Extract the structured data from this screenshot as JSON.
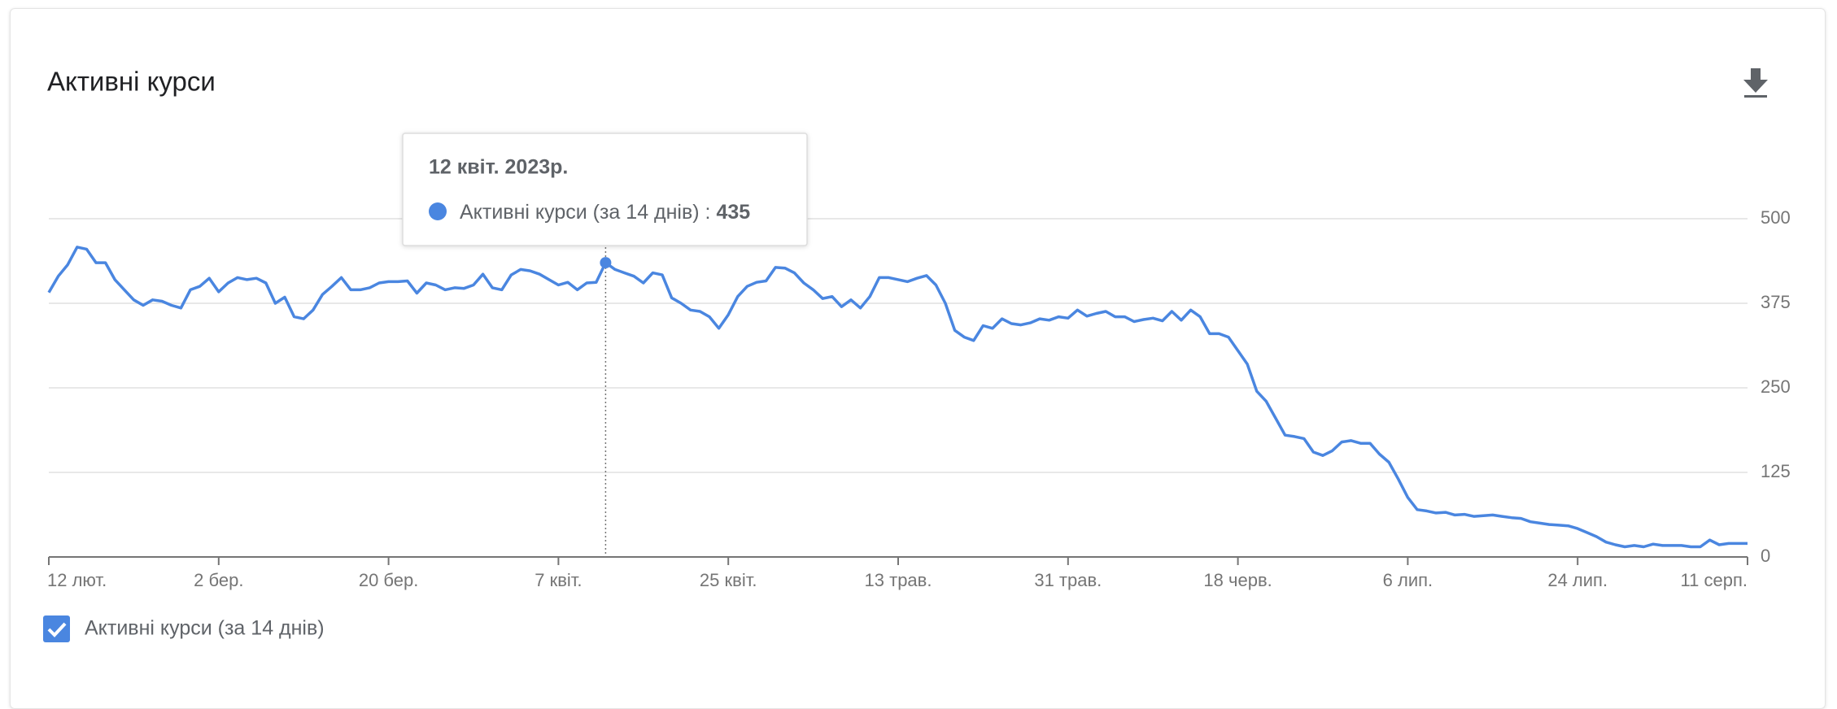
{
  "chart_data": {
    "type": "line",
    "title": "Активні курси",
    "x": [
      "2023-02-12",
      "2023-02-13",
      "2023-02-14",
      "2023-02-15",
      "2023-02-16",
      "2023-02-17",
      "2023-02-18",
      "2023-02-19",
      "2023-02-20",
      "2023-02-21",
      "2023-02-22",
      "2023-02-23",
      "2023-02-24",
      "2023-02-25",
      "2023-02-26",
      "2023-02-27",
      "2023-02-28",
      "2023-03-01",
      "2023-03-02",
      "2023-03-03",
      "2023-03-04",
      "2023-03-05",
      "2023-03-06",
      "2023-03-07",
      "2023-03-08",
      "2023-03-09",
      "2023-03-10",
      "2023-03-11",
      "2023-03-12",
      "2023-03-13",
      "2023-03-14",
      "2023-03-15",
      "2023-03-16",
      "2023-03-17",
      "2023-03-18",
      "2023-03-19",
      "2023-03-20",
      "2023-03-21",
      "2023-03-22",
      "2023-03-23",
      "2023-03-24",
      "2023-03-25",
      "2023-03-26",
      "2023-03-27",
      "2023-03-28",
      "2023-03-29",
      "2023-03-30",
      "2023-03-31",
      "2023-04-01",
      "2023-04-02",
      "2023-04-03",
      "2023-04-04",
      "2023-04-05",
      "2023-04-06",
      "2023-04-07",
      "2023-04-08",
      "2023-04-09",
      "2023-04-10",
      "2023-04-11",
      "2023-04-12",
      "2023-04-13",
      "2023-04-14",
      "2023-04-15",
      "2023-04-16",
      "2023-04-17",
      "2023-04-18",
      "2023-04-19",
      "2023-04-20",
      "2023-04-21",
      "2023-04-22",
      "2023-04-23",
      "2023-04-24",
      "2023-04-25",
      "2023-04-26",
      "2023-04-27",
      "2023-04-28",
      "2023-04-29",
      "2023-04-30",
      "2023-05-01",
      "2023-05-02",
      "2023-05-03",
      "2023-05-04",
      "2023-05-05",
      "2023-05-06",
      "2023-05-07",
      "2023-05-08",
      "2023-05-09",
      "2023-05-10",
      "2023-05-11",
      "2023-05-12",
      "2023-05-13",
      "2023-05-14",
      "2023-05-15",
      "2023-05-16",
      "2023-05-17",
      "2023-05-18",
      "2023-05-19",
      "2023-05-20",
      "2023-05-21",
      "2023-05-22",
      "2023-05-23",
      "2023-05-24",
      "2023-05-25",
      "2023-05-26",
      "2023-05-27",
      "2023-05-28",
      "2023-05-29",
      "2023-05-30",
      "2023-05-31",
      "2023-06-01",
      "2023-06-02",
      "2023-06-03",
      "2023-06-04",
      "2023-06-05",
      "2023-06-06",
      "2023-06-07",
      "2023-06-08",
      "2023-06-09",
      "2023-06-10",
      "2023-06-11",
      "2023-06-12",
      "2023-06-13",
      "2023-06-14",
      "2023-06-15",
      "2023-06-16",
      "2023-06-17",
      "2023-06-18",
      "2023-06-19",
      "2023-06-20",
      "2023-06-21",
      "2023-06-22",
      "2023-06-23",
      "2023-06-24",
      "2023-06-25",
      "2023-06-26",
      "2023-06-27",
      "2023-06-28",
      "2023-06-29",
      "2023-06-30",
      "2023-07-01",
      "2023-07-02",
      "2023-07-03",
      "2023-07-04",
      "2023-07-05",
      "2023-07-06",
      "2023-07-07",
      "2023-07-08",
      "2023-07-09",
      "2023-07-10",
      "2023-07-11",
      "2023-07-12",
      "2023-07-13",
      "2023-07-14",
      "2023-07-15",
      "2023-07-16",
      "2023-07-17",
      "2023-07-18",
      "2023-07-19",
      "2023-07-20",
      "2023-07-21",
      "2023-07-22",
      "2023-07-23",
      "2023-07-24",
      "2023-07-25",
      "2023-07-26",
      "2023-07-27",
      "2023-07-28",
      "2023-07-29",
      "2023-07-30",
      "2023-07-31",
      "2023-08-01",
      "2023-08-02",
      "2023-08-03",
      "2023-08-04",
      "2023-08-05",
      "2023-08-06",
      "2023-08-07",
      "2023-08-08",
      "2023-08-09",
      "2023-08-10",
      "2023-08-11"
    ],
    "series": [
      {
        "name": "Активні курси (за 14 днів)",
        "color": "#4a86e0",
        "values": [
          391,
          415,
          432,
          458,
          455,
          435,
          435,
          410,
          395,
          380,
          372,
          380,
          378,
          372,
          368,
          395,
          400,
          412,
          392,
          405,
          413,
          410,
          412,
          405,
          375,
          384,
          355,
          352,
          365,
          388,
          400,
          413,
          395,
          395,
          398,
          405,
          407,
          407,
          408,
          390,
          405,
          402,
          395,
          398,
          397,
          402,
          418,
          398,
          395,
          417,
          425,
          423,
          418,
          410,
          402,
          406,
          395,
          405,
          406,
          435,
          425,
          420,
          415,
          405,
          420,
          417,
          383,
          375,
          365,
          363,
          355,
          338,
          358,
          385,
          400,
          406,
          408,
          428,
          427,
          420,
          405,
          395,
          382,
          385,
          370,
          380,
          368,
          385,
          413,
          413,
          410,
          407,
          412,
          416,
          402,
          375,
          335,
          325,
          320,
          342,
          338,
          352,
          345,
          343,
          346,
          352,
          350,
          355,
          353,
          365,
          356,
          360,
          363,
          355,
          355,
          348,
          351,
          353,
          349,
          363,
          350,
          365,
          355,
          330,
          330,
          325,
          305,
          285,
          245,
          230,
          205,
          180,
          178,
          175,
          155,
          150,
          157,
          170,
          172,
          168,
          168,
          152,
          140,
          115,
          88,
          70,
          68,
          65,
          66,
          62,
          63,
          60,
          61,
          62,
          60,
          58,
          57,
          52,
          50,
          48,
          47,
          46,
          42,
          36,
          30,
          22,
          18,
          15,
          17,
          15,
          19,
          17,
          17,
          17,
          15,
          15,
          25,
          18,
          20,
          20,
          20
        ]
      }
    ],
    "xlim": [
      "2023-02-12",
      "2023-08-11"
    ],
    "xticks": [
      {
        "value": "2023-02-12",
        "label": "12 лют."
      },
      {
        "value": "2023-03-02",
        "label": "2 бер."
      },
      {
        "value": "2023-03-20",
        "label": "20 бер."
      },
      {
        "value": "2023-04-07",
        "label": "7 квіт."
      },
      {
        "value": "2023-04-25",
        "label": "25 квіт."
      },
      {
        "value": "2023-05-13",
        "label": "13 трав."
      },
      {
        "value": "2023-05-31",
        "label": "31 трав."
      },
      {
        "value": "2023-06-18",
        "label": "18 черв."
      },
      {
        "value": "2023-07-06",
        "label": "6 лип."
      },
      {
        "value": "2023-07-24",
        "label": "24 лип."
      },
      {
        "value": "2023-08-11",
        "label": "11 серп."
      }
    ],
    "ylim": [
      0,
      500
    ],
    "yticks": [
      0,
      125,
      250,
      375,
      500
    ],
    "grid": true,
    "tooltip": {
      "x": "2023-04-12",
      "label": "12 квіт. 2023р.",
      "separator": ":"
    }
  }
}
